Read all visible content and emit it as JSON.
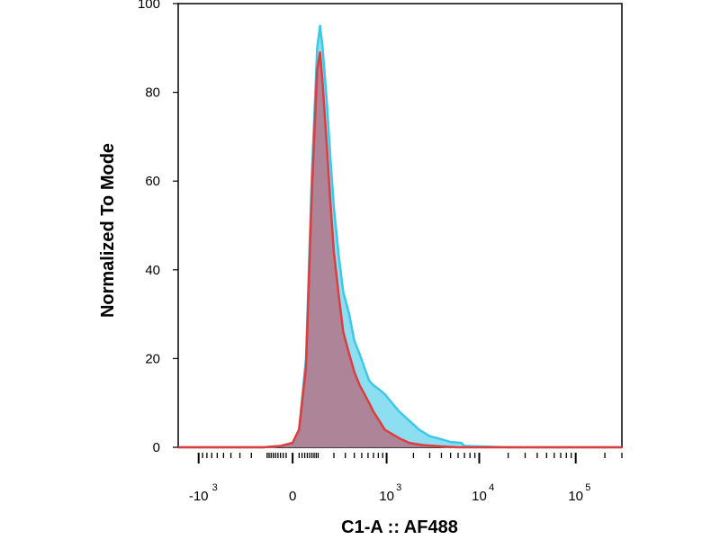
{
  "chart_data": {
    "type": "area",
    "xlabel": "C1-A :: AF488",
    "ylabel": "Normalized To Mode",
    "x_scale": "biexponential",
    "xlim": [
      -1700,
      300000
    ],
    "ylim": [
      0,
      100
    ],
    "y_ticks": [
      {
        "value": 0,
        "label": "0"
      },
      {
        "value": 20,
        "label": "20"
      },
      {
        "value": 40,
        "label": "40"
      },
      {
        "value": 60,
        "label": "60"
      },
      {
        "value": 80,
        "label": "80"
      },
      {
        "value": 100,
        "label": "100"
      }
    ],
    "x_ticks": [
      {
        "value": -1000,
        "base": "-10",
        "exp": "3"
      },
      {
        "value": 0,
        "base": "0",
        "exp": ""
      },
      {
        "value": 1000,
        "base": "10",
        "exp": "3"
      },
      {
        "value": 10000,
        "base": "10",
        "exp": "4"
      },
      {
        "value": 100000,
        "base": "10",
        "exp": "5"
      }
    ],
    "grid": false,
    "legend": "none",
    "series": [
      {
        "color": "#3cc8e8",
        "fill": "#7ad8ee",
        "x": [
          -1700,
          -300,
          -120,
          -40,
          0,
          20,
          45,
          70,
          95,
          110,
          125,
          150,
          175,
          200,
          240,
          280,
          340,
          400,
          470,
          540,
          620,
          700,
          820,
          950,
          1150,
          1400,
          1800,
          2300,
          3000,
          3700,
          5000,
          6500,
          7000,
          20000,
          300000
        ],
        "y": [
          0,
          0,
          0,
          0.3,
          1,
          4,
          20,
          62,
          90,
          95,
          90,
          78,
          65,
          54,
          43,
          35,
          30,
          24,
          21,
          18,
          15,
          14,
          13,
          12,
          10,
          8,
          6,
          4,
          2.5,
          2,
          1.2,
          1,
          0.3,
          0,
          0
        ]
      },
      {
        "color": "#e03c3c",
        "fill": "#b07a8e",
        "x": [
          -1700,
          -300,
          -120,
          -40,
          0,
          20,
          45,
          70,
          95,
          110,
          125,
          150,
          175,
          200,
          240,
          280,
          340,
          400,
          470,
          540,
          620,
          700,
          820,
          950,
          1150,
          1400,
          1800,
          2500,
          4000,
          6000,
          10000,
          300000
        ],
        "y": [
          0,
          0,
          0,
          0.3,
          1,
          4,
          18,
          58,
          85,
          89,
          82,
          68,
          55,
          44,
          34,
          26,
          21,
          17,
          14,
          12,
          10,
          8,
          6,
          4,
          3,
          2,
          1,
          0.5,
          0.2,
          0,
          0,
          0
        ]
      }
    ]
  }
}
